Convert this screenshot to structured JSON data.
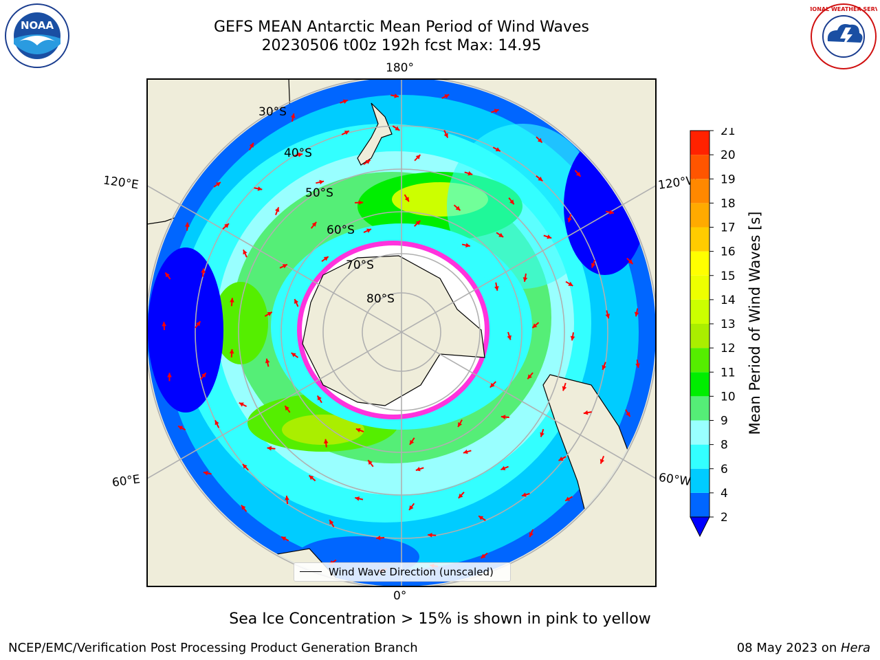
{
  "header": {
    "title_line1": "GEFS MEAN Antarctic Mean Period of Wind Waves",
    "title_line2": "20230506 t00z 192h fcst   Max: 14.95"
  },
  "logos": {
    "left": "noaa-logo",
    "left_text": "NOAA",
    "right": "national-weather-service-logo",
    "right_text": "NATIONAL WEATHER SERVICE"
  },
  "map": {
    "projection": "south-polar-stereographic",
    "longitude_labels": {
      "top": "180°",
      "bottom": "0°",
      "left_upper": "120°E",
      "left_lower": "60°E",
      "right_upper": "120°W",
      "right_lower": "60°W"
    },
    "latitude_labels": [
      "30°S",
      "40°S",
      "50°S",
      "60°S",
      "70°S",
      "80°S"
    ],
    "legend": "Wind Wave Direction (unscaled)",
    "colors": {
      "land": "#efedda",
      "ice_edge": "#ff33dd",
      "arrow": "#ff0000",
      "grid": "#b0b0b0"
    }
  },
  "colorbar": {
    "label": "Mean Period of Wind Waves [s]",
    "ticks": [
      "2",
      "4",
      "6",
      "8",
      "9",
      "10",
      "11",
      "12",
      "13",
      "14",
      "15",
      "16",
      "17",
      "18",
      "19",
      "20",
      "21"
    ],
    "colors": [
      "#0066ff",
      "#00ccff",
      "#33ffff",
      "#99ffff",
      "#55ee77",
      "#00ee00",
      "#55ee00",
      "#aaee00",
      "#ccff00",
      "#eeff00",
      "#ffff00",
      "#ffcc00",
      "#ffaa00",
      "#ff8800",
      "#ff5500",
      "#ff2200"
    ],
    "under_color": "#0000ff"
  },
  "caption": "Sea Ice Concentration > 15% is shown in pink to yellow",
  "footer": {
    "left": "NCEP/EMC/Verification Post Processing Product Generation Branch",
    "right_date": "08 May 2023 on ",
    "right_machine": "Hera"
  }
}
